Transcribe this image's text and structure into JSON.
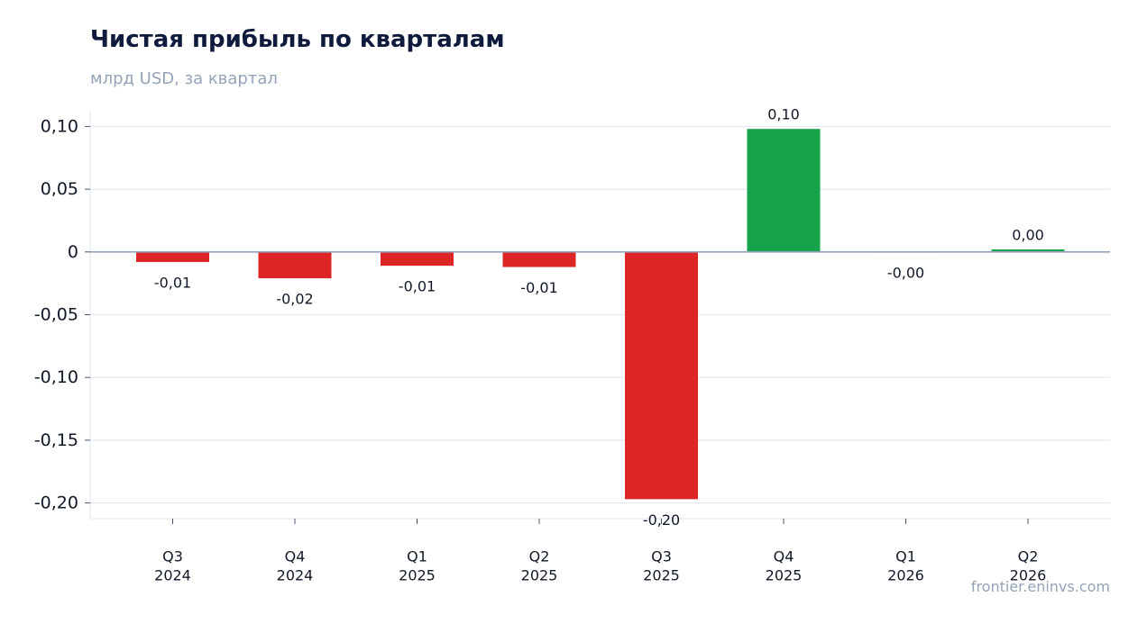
{
  "header": {
    "title": "Чистая прибыль по кварталам",
    "subtitle": "млрд USD, за квартал"
  },
  "footer": {
    "source": "frontier.eninvs.com"
  },
  "colors": {
    "negative": "#dc2626",
    "positive": "#16a34a",
    "grid": "#e2e8f0",
    "zero_line": "#94a3b8",
    "axis_text": "#111827",
    "title": "#0f1b3d",
    "muted": "#94a3b8"
  },
  "chart_data": {
    "type": "bar",
    "title": "Чистая прибыль по кварталам",
    "subtitle": "млрд USD, за квартал",
    "categories": [
      [
        "Q3",
        "2024"
      ],
      [
        "Q4",
        "2024"
      ],
      [
        "Q1",
        "2025"
      ],
      [
        "Q2",
        "2025"
      ],
      [
        "Q3",
        "2025"
      ],
      [
        "Q4",
        "2025"
      ],
      [
        "Q1",
        "2026"
      ],
      [
        "Q2",
        "2026"
      ]
    ],
    "values": [
      -0.008,
      -0.021,
      -0.011,
      -0.012,
      -0.197,
      0.098,
      -0.0005,
      0.002
    ],
    "value_labels": [
      "-0,01",
      "-0,02",
      "-0,01",
      "-0,01",
      "-0,20",
      "0,10",
      "-0,00",
      "0,00"
    ],
    "ylim": [
      -0.2125,
      0.1125
    ],
    "yticks": [
      0.1,
      0.05,
      0,
      -0.05,
      -0.1,
      -0.15,
      -0.2
    ],
    "ytick_labels": [
      "0,10",
      "0,05",
      "0",
      "-0,05",
      "-0,10",
      "-0,15",
      "-0,20"
    ],
    "grid": true,
    "xlabel": "",
    "ylabel": ""
  }
}
